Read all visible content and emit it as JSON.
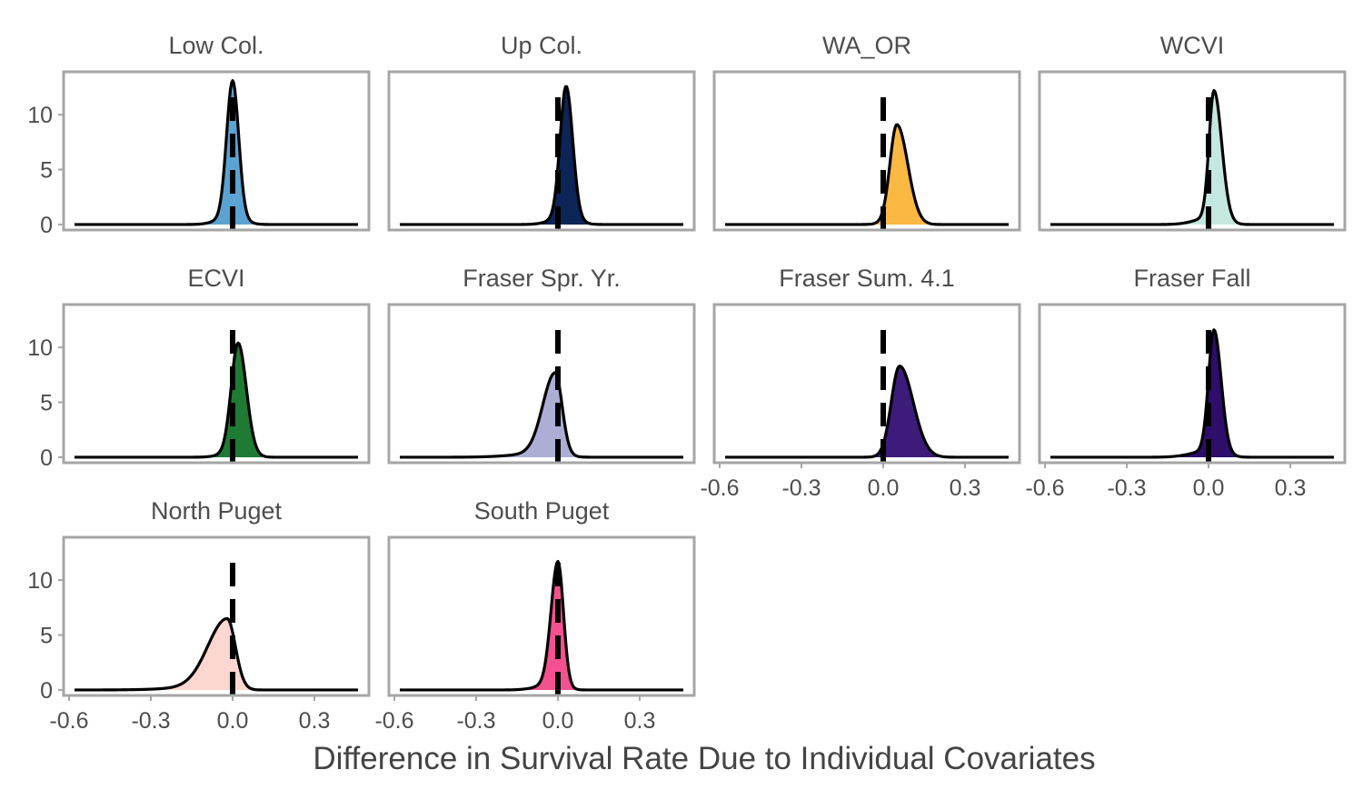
{
  "chart_data": {
    "type": "area",
    "xlabel": "Difference in Survival Rate Due to Individual Covariates",
    "ylabel": "",
    "xlim": [
      -0.62,
      0.5
    ],
    "ylim": [
      -0.5,
      13.9
    ],
    "x_ticks": [
      -0.6,
      -0.3,
      0.0,
      0.3
    ],
    "x_tick_labels": [
      "-0.6",
      "-0.3",
      "0.0",
      "0.3"
    ],
    "y_ticks": [
      0,
      5,
      10
    ],
    "y_tick_labels": [
      "0",
      "5",
      "10"
    ],
    "reference_line_x": 0,
    "grid": false,
    "legend": "none",
    "series": [
      {
        "title": "Low Col.",
        "color": "#5ba3d3",
        "peak_x": 0.0,
        "peak_y": 13.1,
        "sd_left": 0.022,
        "sd_right": 0.022,
        "tail_left": 0.05,
        "tail_right": 0.04
      },
      {
        "title": "Up Col.",
        "color": "#0d2456",
        "peak_x": 0.03,
        "peak_y": 12.6,
        "sd_left": 0.022,
        "sd_right": 0.024,
        "tail_left": 0.05,
        "tail_right": 0.04
      },
      {
        "title": "WA_OR",
        "color": "#fbb843",
        "peak_x": 0.05,
        "peak_y": 9.1,
        "sd_left": 0.025,
        "sd_right": 0.04,
        "tail_left": 0.04,
        "tail_right": 0.04
      },
      {
        "title": "WCVI",
        "color": "#c4e7df",
        "peak_x": 0.02,
        "peak_y": 12.2,
        "sd_left": 0.018,
        "sd_right": 0.028,
        "tail_left": 0.06,
        "tail_right": 0.04
      },
      {
        "title": "ECVI",
        "color": "#1f7a34",
        "peak_x": 0.02,
        "peak_y": 10.4,
        "sd_left": 0.025,
        "sd_right": 0.03,
        "tail_left": 0.05,
        "tail_right": 0.04
      },
      {
        "title": "Fraser Spr. Yr.",
        "color": "#acaed5",
        "peak_x": -0.01,
        "peak_y": 7.7,
        "sd_left": 0.045,
        "sd_right": 0.025,
        "tail_left": 0.12,
        "tail_right": 0.04
      },
      {
        "title": "Fraser Sum. 4.1",
        "color": "#3d1b7a",
        "peak_x": 0.06,
        "peak_y": 8.3,
        "sd_left": 0.03,
        "sd_right": 0.05,
        "tail_left": 0.04,
        "tail_right": 0.05
      },
      {
        "title": "Fraser Fall",
        "color": "#2e0d6b",
        "peak_x": 0.02,
        "peak_y": 11.6,
        "sd_left": 0.02,
        "sd_right": 0.026,
        "tail_left": 0.07,
        "tail_right": 0.04
      },
      {
        "title": "North Puget",
        "color": "#fcd6d0",
        "peak_x": -0.02,
        "peak_y": 6.5,
        "sd_left": 0.07,
        "sd_right": 0.03,
        "tail_left": 0.15,
        "tail_right": 0.04
      },
      {
        "title": "South Puget",
        "color": "#f45190",
        "peak_x": 0.0,
        "peak_y": 11.7,
        "sd_left": 0.025,
        "sd_right": 0.02,
        "tail_left": 0.06,
        "tail_right": 0.03
      }
    ]
  }
}
